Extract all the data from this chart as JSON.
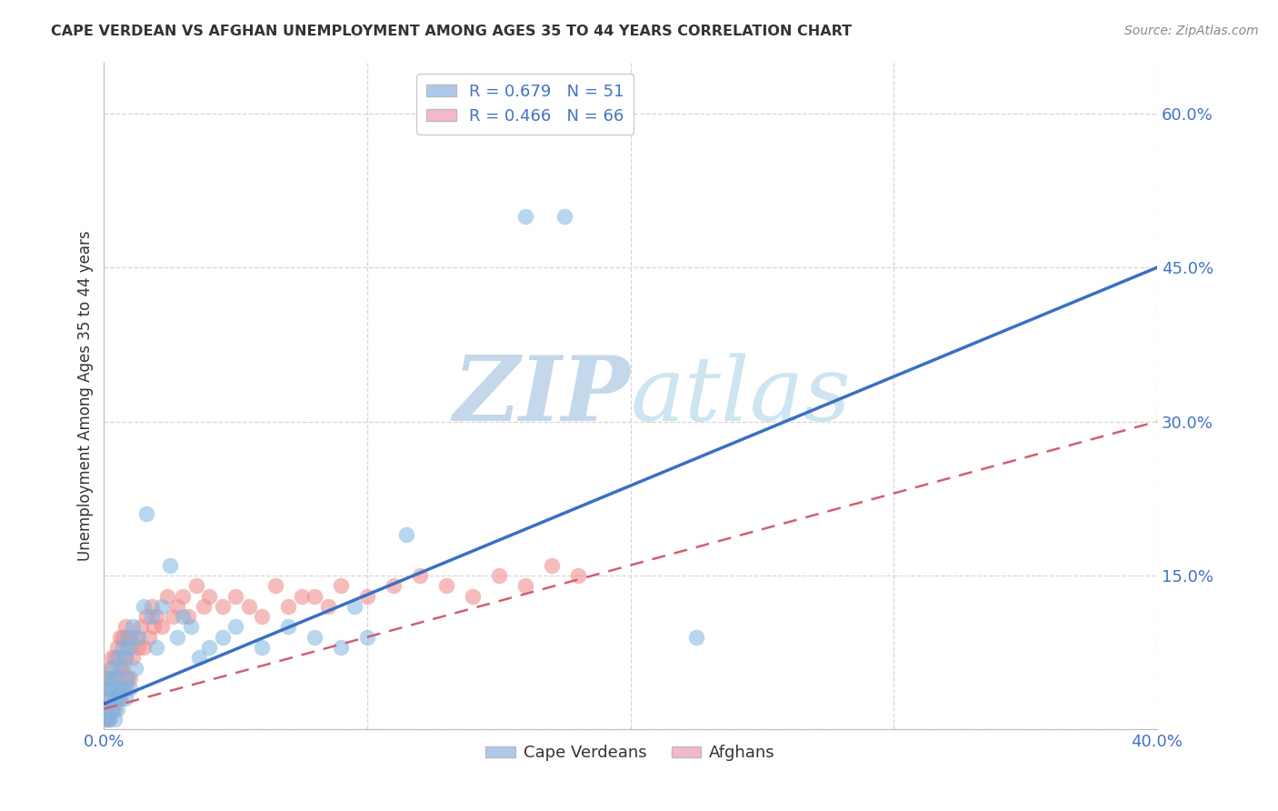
{
  "title": "CAPE VERDEAN VS AFGHAN UNEMPLOYMENT AMONG AGES 35 TO 44 YEARS CORRELATION CHART",
  "source": "Source: ZipAtlas.com",
  "ylabel": "Unemployment Among Ages 35 to 44 years",
  "xlim": [
    0,
    0.4
  ],
  "ylim": [
    0,
    0.65
  ],
  "xticks": [
    0.0,
    0.1,
    0.2,
    0.3,
    0.4
  ],
  "xtick_labels": [
    "0.0%",
    "",
    "",
    "",
    "40.0%"
  ],
  "yticks": [
    0.0,
    0.15,
    0.3,
    0.45,
    0.6
  ],
  "ytick_labels": [
    "",
    "15.0%",
    "30.0%",
    "45.0%",
    "60.0%"
  ],
  "legend_label1": "R = 0.679   N = 51",
  "legend_label2": "R = 0.466   N = 66",
  "legend_color1": "#adc8e8",
  "legend_color2": "#f5b8c8",
  "scatter_color1": "#7eb5e0",
  "scatter_color2": "#f09090",
  "line_color1": "#3a6fc4",
  "line_color2": "#d06070",
  "watermark_zip": "ZIP",
  "watermark_atlas": "atlas",
  "watermark_zip_color": "#b8d0e8",
  "watermark_atlas_color": "#c8dde8",
  "cv_line_x0": 0.0,
  "cv_line_y0": 0.025,
  "cv_line_x1": 0.4,
  "cv_line_y1": 0.45,
  "af_line_x0": 0.0,
  "af_line_y0": 0.02,
  "af_line_x1": 0.4,
  "af_line_y1": 0.3,
  "cape_verdean_x": [
    0.001,
    0.001,
    0.001,
    0.002,
    0.002,
    0.002,
    0.003,
    0.003,
    0.003,
    0.004,
    0.004,
    0.004,
    0.005,
    0.005,
    0.005,
    0.006,
    0.006,
    0.007,
    0.007,
    0.008,
    0.008,
    0.009,
    0.009,
    0.01,
    0.01,
    0.011,
    0.012,
    0.013,
    0.015,
    0.016,
    0.018,
    0.02,
    0.022,
    0.025,
    0.028,
    0.03,
    0.033,
    0.036,
    0.04,
    0.045,
    0.05,
    0.06,
    0.07,
    0.08,
    0.09,
    0.095,
    0.1,
    0.115,
    0.16,
    0.175,
    0.225
  ],
  "cape_verdean_y": [
    0.01,
    0.02,
    0.04,
    0.01,
    0.03,
    0.05,
    0.02,
    0.04,
    0.06,
    0.01,
    0.03,
    0.05,
    0.02,
    0.04,
    0.07,
    0.03,
    0.06,
    0.04,
    0.08,
    0.03,
    0.07,
    0.05,
    0.09,
    0.04,
    0.08,
    0.1,
    0.06,
    0.09,
    0.12,
    0.21,
    0.11,
    0.08,
    0.12,
    0.16,
    0.09,
    0.11,
    0.1,
    0.07,
    0.08,
    0.09,
    0.1,
    0.08,
    0.1,
    0.09,
    0.08,
    0.12,
    0.09,
    0.19,
    0.5,
    0.5,
    0.09
  ],
  "afghan_x": [
    0.001,
    0.001,
    0.001,
    0.002,
    0.002,
    0.002,
    0.003,
    0.003,
    0.003,
    0.004,
    0.004,
    0.004,
    0.005,
    0.005,
    0.005,
    0.006,
    0.006,
    0.006,
    0.007,
    0.007,
    0.007,
    0.008,
    0.008,
    0.008,
    0.009,
    0.009,
    0.01,
    0.01,
    0.011,
    0.012,
    0.013,
    0.014,
    0.015,
    0.016,
    0.017,
    0.018,
    0.019,
    0.02,
    0.022,
    0.024,
    0.026,
    0.028,
    0.03,
    0.032,
    0.035,
    0.038,
    0.04,
    0.045,
    0.05,
    0.055,
    0.06,
    0.065,
    0.07,
    0.075,
    0.08,
    0.085,
    0.09,
    0.1,
    0.11,
    0.12,
    0.13,
    0.14,
    0.15,
    0.16,
    0.17,
    0.18
  ],
  "afghan_y": [
    0.01,
    0.03,
    0.05,
    0.01,
    0.04,
    0.06,
    0.02,
    0.05,
    0.07,
    0.02,
    0.04,
    0.07,
    0.03,
    0.05,
    0.08,
    0.03,
    0.06,
    0.09,
    0.04,
    0.06,
    0.09,
    0.04,
    0.07,
    0.1,
    0.05,
    0.08,
    0.05,
    0.09,
    0.07,
    0.09,
    0.08,
    0.1,
    0.08,
    0.11,
    0.09,
    0.12,
    0.1,
    0.11,
    0.1,
    0.13,
    0.11,
    0.12,
    0.13,
    0.11,
    0.14,
    0.12,
    0.13,
    0.12,
    0.13,
    0.12,
    0.11,
    0.14,
    0.12,
    0.13,
    0.13,
    0.12,
    0.14,
    0.13,
    0.14,
    0.15,
    0.14,
    0.13,
    0.15,
    0.14,
    0.16,
    0.15
  ]
}
